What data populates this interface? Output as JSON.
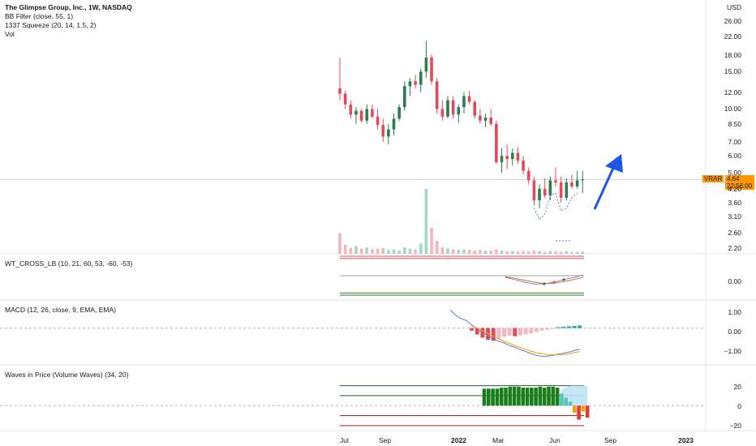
{
  "header": {
    "title": "The Glimpse Group, Inc., 1W, NASDAQ",
    "indicators": [
      "BB Filter (close, 55, 1)",
      "1337 Squeeze (20, 14, 1.5, 2)",
      "Vol"
    ],
    "currency": "USD"
  },
  "price_tag": {
    "ticker": "VRAR",
    "value": "4.64",
    "countdown": "22:56:00",
    "color": "#ff9800"
  },
  "panes": {
    "wt": {
      "label": "WT_CROSS_LB (10, 21, 60, 53, -60, -53)",
      "ticks": [
        "0.00"
      ]
    },
    "macd": {
      "label": "MACD (12, 26, close, 9, EMA, EMA)",
      "ticks": [
        "1.00",
        "0.00",
        "−1.00"
      ]
    },
    "waves": {
      "label": "Waves in Price (Volume Waves) (34, 20)",
      "ticks": [
        "20",
        "0",
        "−20"
      ]
    }
  },
  "colors": {
    "up": "#2e7d4f",
    "down": "#e04a5a",
    "macd": "#5b7fd6",
    "signal": "#ff9800",
    "arrow": "#1e55e8"
  },
  "chart_data": {
    "type": "candlestick",
    "scale": "log",
    "price_axis_ticks": [
      26.0,
      22.0,
      18.0,
      15.0,
      12.0,
      10.0,
      8.5,
      7.0,
      6.0,
      5.0,
      4.2,
      3.6,
      3.1,
      2.6,
      2.2
    ],
    "price_axis_labels": [
      "26.00",
      "22.00",
      "18.00",
      "15.00",
      "12.00",
      "10.00",
      "8.50",
      "7.00",
      "6.00",
      "5.00",
      "4.20",
      "3.60",
      "3.10",
      "2.60",
      "2.20"
    ],
    "x_labels": [
      "Jul",
      "Sep",
      "2022",
      "Mar",
      "Jun",
      "Sep",
      "2023"
    ],
    "candles": [
      [
        12.5,
        17.5,
        11.0,
        11.8
      ],
      [
        11.8,
        12.2,
        10.0,
        10.5
      ],
      [
        10.5,
        11.0,
        9.0,
        9.4
      ],
      [
        9.4,
        10.2,
        8.5,
        9.8
      ],
      [
        9.8,
        10.0,
        8.6,
        8.8
      ],
      [
        8.8,
        10.5,
        8.5,
        10.0
      ],
      [
        10.0,
        10.5,
        9.0,
        9.2
      ],
      [
        9.2,
        10.0,
        8.0,
        8.4
      ],
      [
        8.4,
        9.0,
        7.0,
        7.4
      ],
      [
        7.4,
        8.5,
        6.8,
        8.0
      ],
      [
        8.0,
        9.5,
        7.5,
        9.0
      ],
      [
        9.0,
        10.5,
        8.8,
        10.2
      ],
      [
        10.2,
        13.5,
        9.8,
        12.8
      ],
      [
        12.8,
        14.0,
        11.5,
        13.5
      ],
      [
        13.5,
        14.5,
        12.5,
        13.0
      ],
      [
        13.0,
        15.5,
        12.0,
        15.0
      ],
      [
        15.0,
        21.0,
        14.0,
        17.5
      ],
      [
        17.5,
        18.0,
        13.0,
        13.5
      ],
      [
        13.5,
        14.0,
        9.5,
        10.0
      ],
      [
        10.0,
        11.0,
        8.8,
        9.2
      ],
      [
        9.2,
        11.5,
        9.0,
        11.0
      ],
      [
        11.0,
        11.5,
        9.0,
        9.4
      ],
      [
        9.4,
        10.5,
        8.6,
        10.2
      ],
      [
        10.2,
        12.0,
        9.5,
        11.5
      ],
      [
        11.5,
        12.2,
        10.5,
        10.8
      ],
      [
        10.8,
        11.0,
        9.0,
        9.3
      ],
      [
        9.3,
        10.0,
        8.5,
        8.8
      ],
      [
        8.8,
        9.5,
        8.2,
        9.1
      ],
      [
        9.1,
        10.0,
        8.3,
        8.5
      ],
      [
        8.5,
        8.8,
        5.5,
        5.6
      ],
      [
        5.6,
        6.5,
        5.0,
        6.0
      ],
      [
        6.0,
        6.8,
        5.2,
        5.8
      ],
      [
        5.8,
        6.5,
        5.4,
        6.2
      ],
      [
        6.2,
        6.6,
        5.5,
        5.7
      ],
      [
        5.7,
        6.0,
        4.9,
        5.1
      ],
      [
        5.1,
        5.3,
        4.4,
        4.6
      ],
      [
        4.6,
        4.8,
        3.5,
        3.7
      ],
      [
        3.7,
        4.4,
        3.4,
        4.2
      ],
      [
        4.2,
        4.7,
        3.8,
        3.9
      ],
      [
        3.9,
        4.8,
        3.7,
        4.6
      ],
      [
        4.6,
        5.3,
        4.3,
        4.5
      ],
      [
        4.5,
        4.8,
        3.6,
        3.8
      ],
      [
        3.8,
        4.7,
        3.7,
        4.5
      ],
      [
        4.5,
        4.9,
        4.2,
        4.3
      ],
      [
        4.3,
        5.1,
        4.2,
        4.6
      ],
      [
        4.6,
        5.1,
        4.0,
        4.64
      ]
    ],
    "volume": [
      0.32,
      0.14,
      0.09,
      0.12,
      0.08,
      0.1,
      0.07,
      0.08,
      0.09,
      0.06,
      0.07,
      0.05,
      0.1,
      0.08,
      0.07,
      0.16,
      1.0,
      0.4,
      0.2,
      0.1,
      0.08,
      0.07,
      0.06,
      0.07,
      0.06,
      0.05,
      0.06,
      0.05,
      0.05,
      0.07,
      0.05,
      0.04,
      0.04,
      0.04,
      0.04,
      0.04,
      0.05,
      0.04,
      0.03,
      0.04,
      0.04,
      0.03,
      0.04,
      0.03,
      0.03,
      0.03
    ],
    "wt": {
      "wt1": [
        -5,
        -12,
        -20,
        -26,
        -25,
        -20,
        -12,
        -6,
        2
      ],
      "wt2": [
        -3,
        -8,
        -14,
        -20,
        -24,
        -23,
        -18,
        -12,
        -5
      ],
      "range": [
        -70,
        60
      ]
    },
    "macd": {
      "macd": [
        0.85,
        0.6,
        0.45,
        0.35,
        0.15,
        -0.05,
        -0.2,
        -0.35,
        -0.5,
        -0.62,
        -0.7,
        -0.82,
        -0.9,
        -1.0,
        -1.1,
        -1.2,
        -1.28,
        -1.32,
        -1.32,
        -1.28,
        -1.22,
        -1.18,
        -1.12,
        -1.05,
        -0.98
      ],
      "signal": [
        null,
        null,
        null,
        null,
        0.1,
        0.0,
        -0.12,
        -0.25,
        -0.38,
        -0.5,
        -0.62,
        -0.72,
        -0.82,
        -0.9,
        -1.0,
        -1.08,
        -1.15,
        -1.2,
        -1.24,
        -1.25,
        -1.26,
        -1.24,
        -1.2,
        -1.15,
        -1.1
      ],
      "hist": [
        0,
        0,
        0,
        0,
        -0.12,
        -0.3,
        -0.45,
        -0.55,
        -0.6,
        -0.48,
        -0.4,
        -0.35,
        -0.38,
        -0.35,
        -0.3,
        -0.25,
        -0.18,
        -0.12,
        -0.08,
        -0.03,
        0.04,
        0.06,
        0.08,
        0.1,
        0.12
      ],
      "range": [
        -1.65,
        1.2
      ]
    },
    "waves": {
      "values": [
        17,
        17,
        17,
        17,
        18,
        18,
        19,
        19,
        19,
        18,
        18,
        18,
        18,
        19,
        18,
        19,
        19,
        18,
        12,
        8,
        4,
        -7,
        -14,
        -6,
        -12
      ],
      "levels": [
        20,
        10,
        -10,
        -20
      ],
      "range": [
        -25,
        27
      ]
    }
  }
}
